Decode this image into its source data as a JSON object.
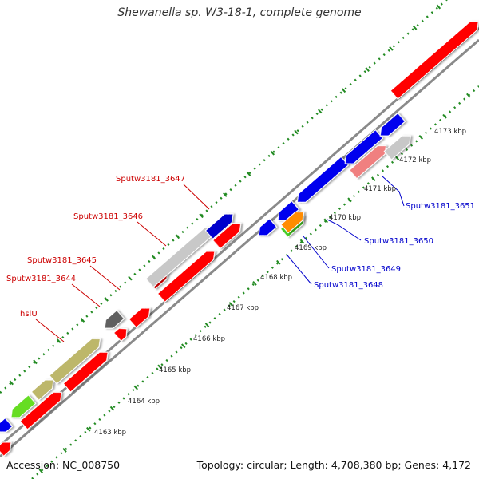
{
  "title": "Shewanella sp. W3-18-1, complete genome",
  "footer": {
    "accession": "Accession: NC_008750",
    "summary": "Topology: circular; Length: 4,708,380 bp; Genes: 4,172"
  },
  "colors": {
    "backbone": "#8a8a8a",
    "tick_dots": "#228b22",
    "label_red": "#cc0000",
    "label_blue": "#0000cc",
    "tick_text": "#222222"
  },
  "ticks": [
    "4163 kbp",
    "4164 kbp",
    "4165 kbp",
    "4166 kbp",
    "4167 kbp",
    "4168 kbp",
    "4169 kbp",
    "4170 kbp",
    "4171 kbp",
    "4172 kbp",
    "4173 kbp"
  ],
  "genes": {
    "top": [
      {
        "label": "",
        "color": "#0000ee"
      },
      {
        "label": "",
        "color": "#ff0000"
      },
      {
        "label": "",
        "color": "#66dd22"
      },
      {
        "label": "",
        "color": "#ff0000"
      },
      {
        "label": "",
        "color": "#bdb76b"
      },
      {
        "label": "hslU",
        "color": "#bdb76b"
      },
      {
        "label": "",
        "color": "#ff0000"
      },
      {
        "label": "",
        "color": "#ff0000"
      },
      {
        "label": "Sputw3181_3644",
        "color": "#606060"
      },
      {
        "label": "",
        "color": "#ff0000"
      },
      {
        "label": "Sputw3181_3645",
        "color": "#ff0000"
      },
      {
        "label": "Sputw3181_3646",
        "color": "#c8c8c8"
      },
      {
        "label": "",
        "color": "#ff0000"
      },
      {
        "label": "Sputw3181_3647",
        "color": "#0000cc"
      },
      {
        "label": "",
        "color": "#ff0000"
      },
      {
        "label": "",
        "color": "#ff0000"
      }
    ],
    "bottom": [
      {
        "label": "",
        "color": "#0000ee"
      },
      {
        "label": "",
        "color": "#0000ee"
      },
      {
        "label": "Sputw3181_3648",
        "color": "#44cc22"
      },
      {
        "label": "Sputw3181_3649",
        "color": "#ff8c00"
      },
      {
        "label": "",
        "color": "#0000ee"
      },
      {
        "label": "",
        "color": "#0000ee"
      },
      {
        "label": "Sputw3181_3650",
        "color": "#f08080"
      },
      {
        "label": "Sputw3181_3651",
        "color": "#c8c8c8"
      },
      {
        "label": "",
        "color": "#0000ee"
      }
    ]
  }
}
